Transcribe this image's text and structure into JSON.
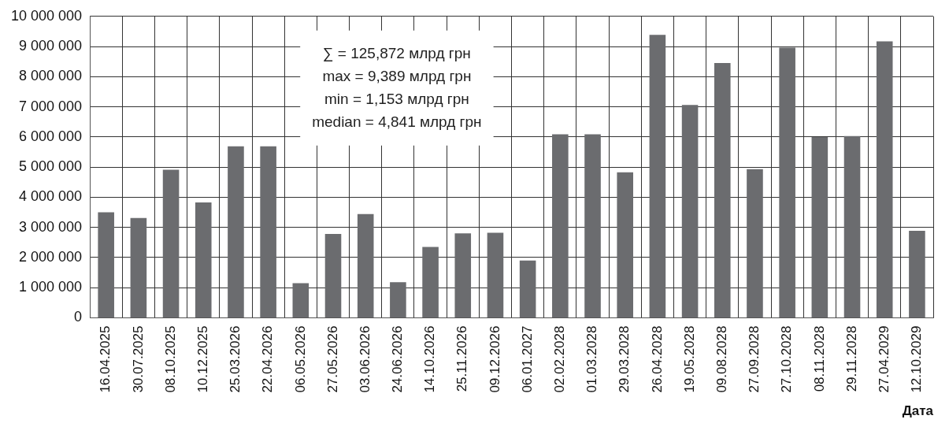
{
  "chart_data": {
    "type": "bar",
    "xlabel": "Дата",
    "categories": [
      "16.04.2025",
      "30.07.2025",
      "08.10.2025",
      "10.12.2025",
      "25.03.2026",
      "22.04.2026",
      "06.05.2026",
      "27.05.2026",
      "03.06.2026",
      "24.06.2026",
      "14.10.2026",
      "25.11.2026",
      "09.12.2026",
      "06.01.2027",
      "02.02.2028",
      "01.03.2028",
      "29.03.2028",
      "26.04.2028",
      "19.05.2028",
      "09.08.2028",
      "27.09.2028",
      "27.10.2028",
      "08.11.2028",
      "29.11.2028",
      "27.04.2029",
      "12.10.2029"
    ],
    "values": [
      3500000,
      3310000,
      4910000,
      3830000,
      5690000,
      5690000,
      1153000,
      2780000,
      3440000,
      1180000,
      2350000,
      2800000,
      2820000,
      1900000,
      6090000,
      6090000,
      4830000,
      9389000,
      7060000,
      8450000,
      4930000,
      8960000,
      6000000,
      6030000,
      9170000,
      2890000
    ],
    "color": "#6b6c6f",
    "ylim": [
      0,
      10000000
    ],
    "yticks": [
      {
        "value": 0,
        "label": "0"
      },
      {
        "value": 1000000,
        "label": "1 000 000"
      },
      {
        "value": 2000000,
        "label": "2 000 000"
      },
      {
        "value": 3000000,
        "label": "3 000 000"
      },
      {
        "value": 4000000,
        "label": "4 000 000"
      },
      {
        "value": 5000000,
        "label": "5 000 000"
      },
      {
        "value": 6000000,
        "label": "6 000 000"
      },
      {
        "value": 7000000,
        "label": "7 000 000"
      },
      {
        "value": 8000000,
        "label": "8 000 000"
      },
      {
        "value": 9000000,
        "label": "9 000 000"
      },
      {
        "value": 10000000,
        "label": "10 000 000"
      }
    ],
    "annotations": [
      "∑ = 125,872 млрд грн",
      "max = 9,389 млрд грн",
      "min = 1,153 млрд грн",
      "median = 4,841 млрд грн"
    ],
    "grid": true
  }
}
